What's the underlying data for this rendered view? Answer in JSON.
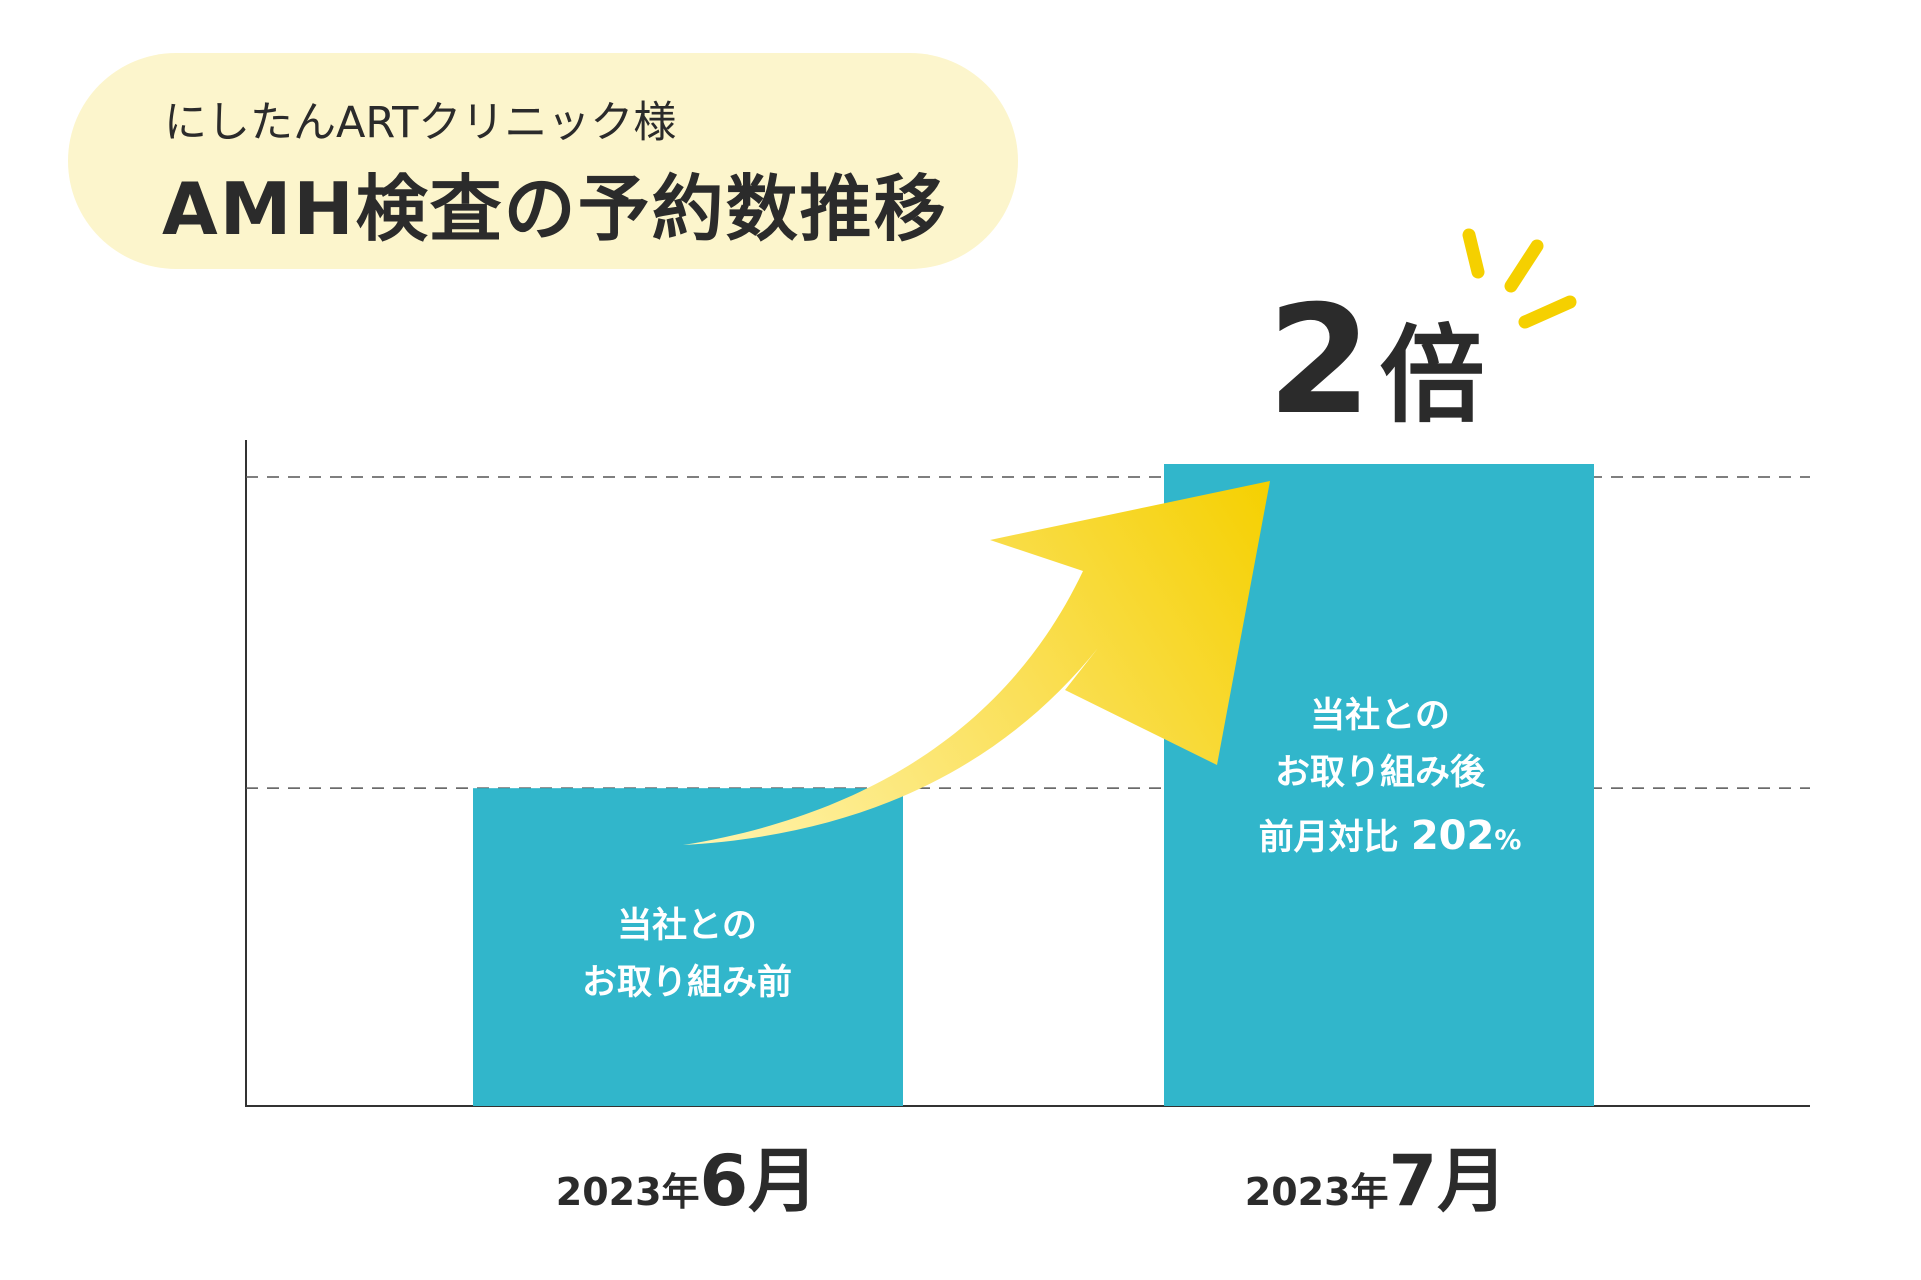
{
  "header": {
    "clinic": "にしたんARTクリニック様",
    "title": "AMH検査の予約数推移"
  },
  "headline": {
    "number": "2",
    "unit": "倍"
  },
  "bars": [
    {
      "year": "2023年",
      "month": "6月",
      "lines": [
        "当社との",
        "お取り組み前"
      ]
    },
    {
      "year": "2023年",
      "month": "7月",
      "lines": [
        "当社との",
        "お取り組み後"
      ],
      "ratio_prefix": "前月対比 ",
      "ratio_value": "202",
      "ratio_unit": "%"
    }
  ],
  "colors": {
    "bar": "#31b6cb",
    "pill": "#fcf5cc",
    "arrow": "#f5d000",
    "text": "#2b2b2b"
  },
  "chart_data": {
    "type": "bar",
    "categories": [
      "2023年6月",
      "2023年7月"
    ],
    "values": [
      100,
      202
    ],
    "ylim": [
      0,
      202
    ],
    "grid": "dashed reference lines at bar tops"
  }
}
